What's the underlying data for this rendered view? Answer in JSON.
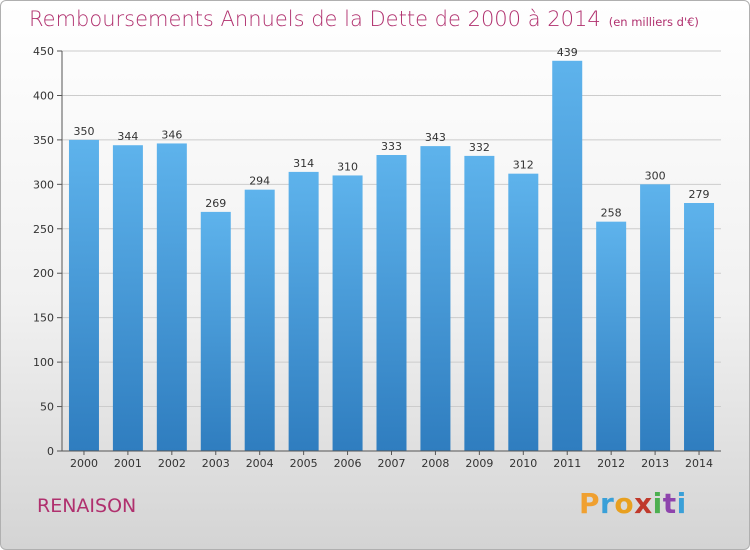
{
  "title": "Remboursements Annuels de la Dette de 2000 à 2014",
  "unit": "(en milliers d'€)",
  "place": "RENAISON",
  "logo_text": "Proxiti",
  "colors": {
    "title": "#b0306e",
    "bar_top": "#5eb3ec",
    "bar_bottom": "#2f7dbf",
    "grid": "#cccccc"
  },
  "chart_data": {
    "type": "bar",
    "title": "Remboursements Annuels de la Dette de 2000 à 2014",
    "xlabel": "",
    "ylabel": "",
    "ylim": [
      0,
      450
    ],
    "yticks": [
      0,
      50,
      100,
      150,
      200,
      250,
      300,
      350,
      400,
      450
    ],
    "grid": true,
    "categories": [
      "2000",
      "2001",
      "2002",
      "2003",
      "2004",
      "2005",
      "2006",
      "2007",
      "2008",
      "2009",
      "2010",
      "2011",
      "2012",
      "2013",
      "2014"
    ],
    "values": [
      350,
      344,
      346,
      269,
      294,
      314,
      310,
      333,
      343,
      332,
      312,
      439,
      258,
      300,
      279
    ]
  }
}
